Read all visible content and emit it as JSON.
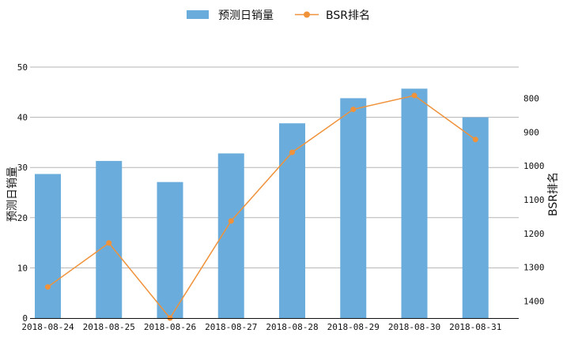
{
  "chart_data": {
    "type": "bar+line",
    "categories": [
      "2018-08-24",
      "2018-08-25",
      "2018-08-26",
      "2018-08-27",
      "2018-08-28",
      "2018-08-29",
      "2018-08-30",
      "2018-08-31"
    ],
    "series": [
      {
        "name": "预测日销量",
        "type": "bar",
        "axis": "left",
        "color": "#6aaddc",
        "values": [
          28.7,
          31.3,
          27.1,
          32.8,
          38.8,
          43.8,
          45.7,
          40.0
        ]
      },
      {
        "name": "BSR排名",
        "type": "line",
        "axis": "right",
        "color": "#f0923a",
        "values": [
          1358,
          1228,
          1450,
          1163,
          960,
          833,
          792,
          922
        ]
      }
    ],
    "y_left": {
      "label": "预测日销量",
      "min": 0,
      "max": 50,
      "ticks": [
        0,
        10,
        20,
        30,
        40,
        50
      ]
    },
    "y_right": {
      "label": "BSR排名",
      "inverted": true,
      "min": 708,
      "max": 1450,
      "ticks": [
        800,
        900,
        1000,
        1100,
        1200,
        1300,
        1400
      ]
    },
    "grid": "horizontal",
    "legend": "top-center"
  }
}
